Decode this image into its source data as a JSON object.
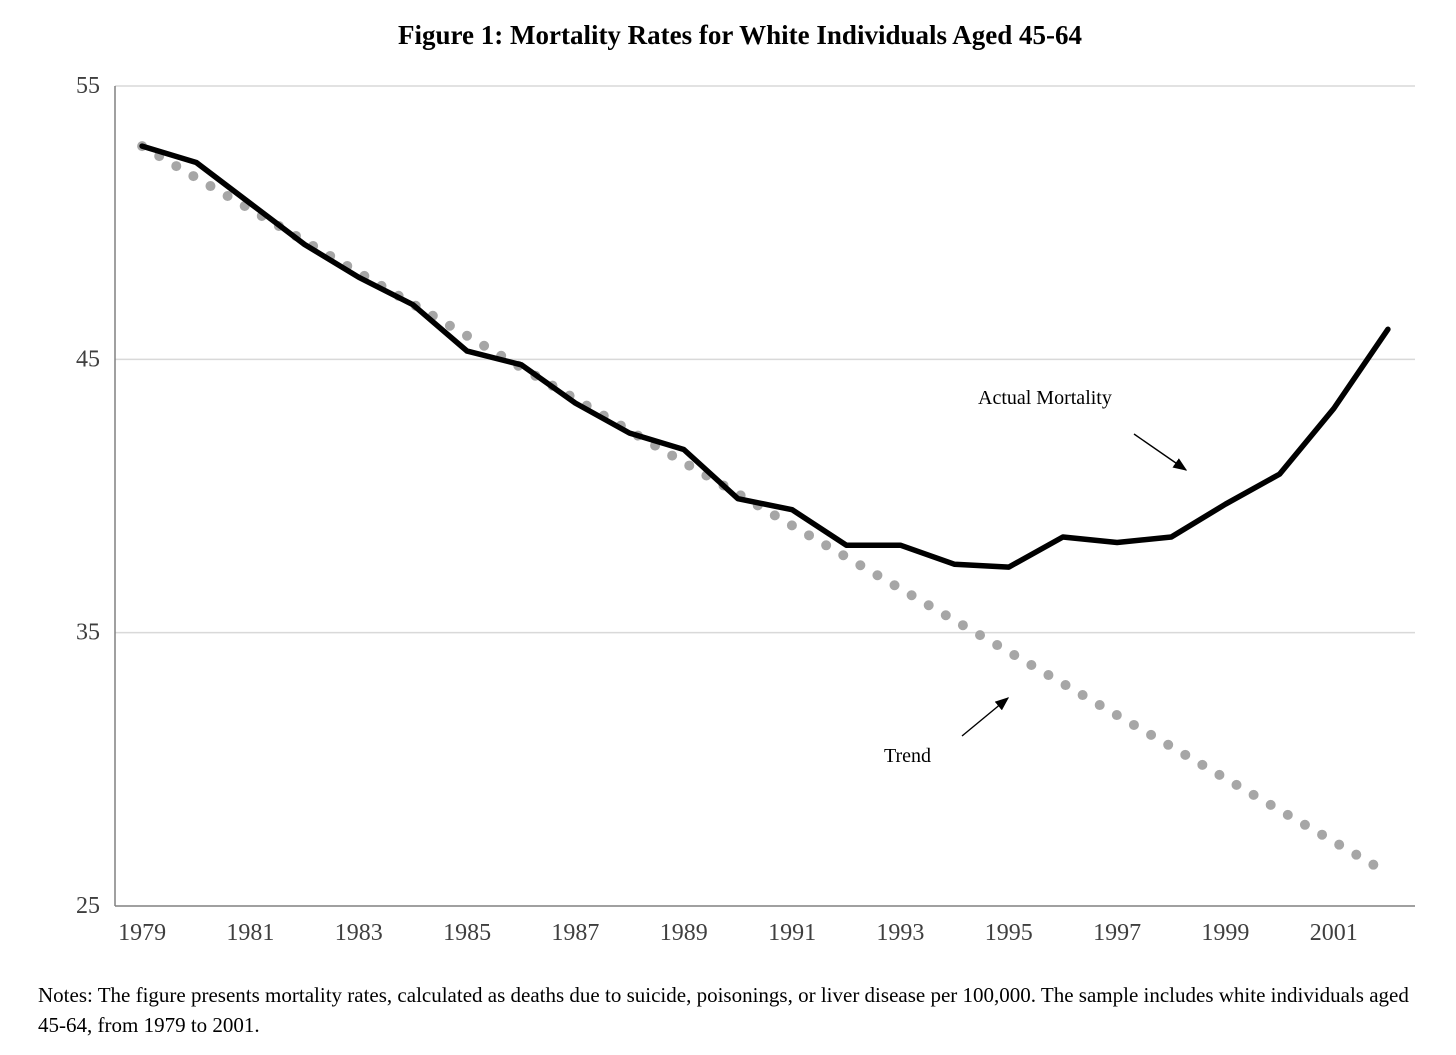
{
  "figure": {
    "title": "Figure 1: Mortality Rates for White Individuals Aged 45-64",
    "notes": "Notes: The figure presents mortality rates, calculated as deaths due to suicide, poisonings, or liver disease per 100,000. The sample includes white individuals aged 45-64, from 1979 to 2001."
  },
  "annotations": {
    "actual_mortality_label": "Actual Mortality",
    "trend_label": "Trend"
  },
  "chart_data": {
    "type": "line",
    "title": "Figure 1: Mortality Rates for White Individuals Aged 45-64",
    "x": [
      1979,
      1980,
      1981,
      1982,
      1983,
      1984,
      1985,
      1986,
      1987,
      1988,
      1989,
      1990,
      1991,
      1992,
      1993,
      1994,
      1995,
      1996,
      1997,
      1998,
      1999,
      2000,
      2001,
      2002
    ],
    "x_tick_labels": [
      "1979",
      "1981",
      "1983",
      "1985",
      "1987",
      "1989",
      "1991",
      "1993",
      "1995",
      "1997",
      "1999",
      "2001"
    ],
    "ylim": [
      25,
      55
    ],
    "y_ticks": [
      25,
      35,
      45,
      55
    ],
    "grid": "horizontal",
    "legend_position": "none",
    "series": [
      {
        "name": "Actual Mortality",
        "line_style": "solid",
        "color": "#000000",
        "values": [
          52.8,
          52.2,
          50.7,
          49.2,
          48.0,
          47.0,
          45.3,
          44.8,
          43.4,
          42.3,
          41.7,
          39.9,
          39.5,
          38.2,
          38.2,
          37.5,
          37.4,
          38.5,
          38.3,
          38.5,
          39.7,
          40.8,
          43.2,
          46.1
        ]
      },
      {
        "name": "Trend",
        "line_style": "round-dot",
        "color": "#A6A6A6",
        "values": [
          52.8,
          51.64,
          50.49,
          49.33,
          48.17,
          47.02,
          45.86,
          44.7,
          43.55,
          42.39,
          41.23,
          40.08,
          38.92,
          37.77,
          36.61,
          35.45,
          34.3,
          33.14,
          31.98,
          30.83,
          29.67,
          28.51,
          27.36,
          26.2
        ]
      }
    ]
  },
  "colors": {
    "background": "#FFFFFF",
    "actual_line": "#000000",
    "trend_dots": "#A6A6A6",
    "gridline": "#D9D9D9",
    "axis_line": "#808080",
    "tick_label": "#3F3F3F"
  }
}
